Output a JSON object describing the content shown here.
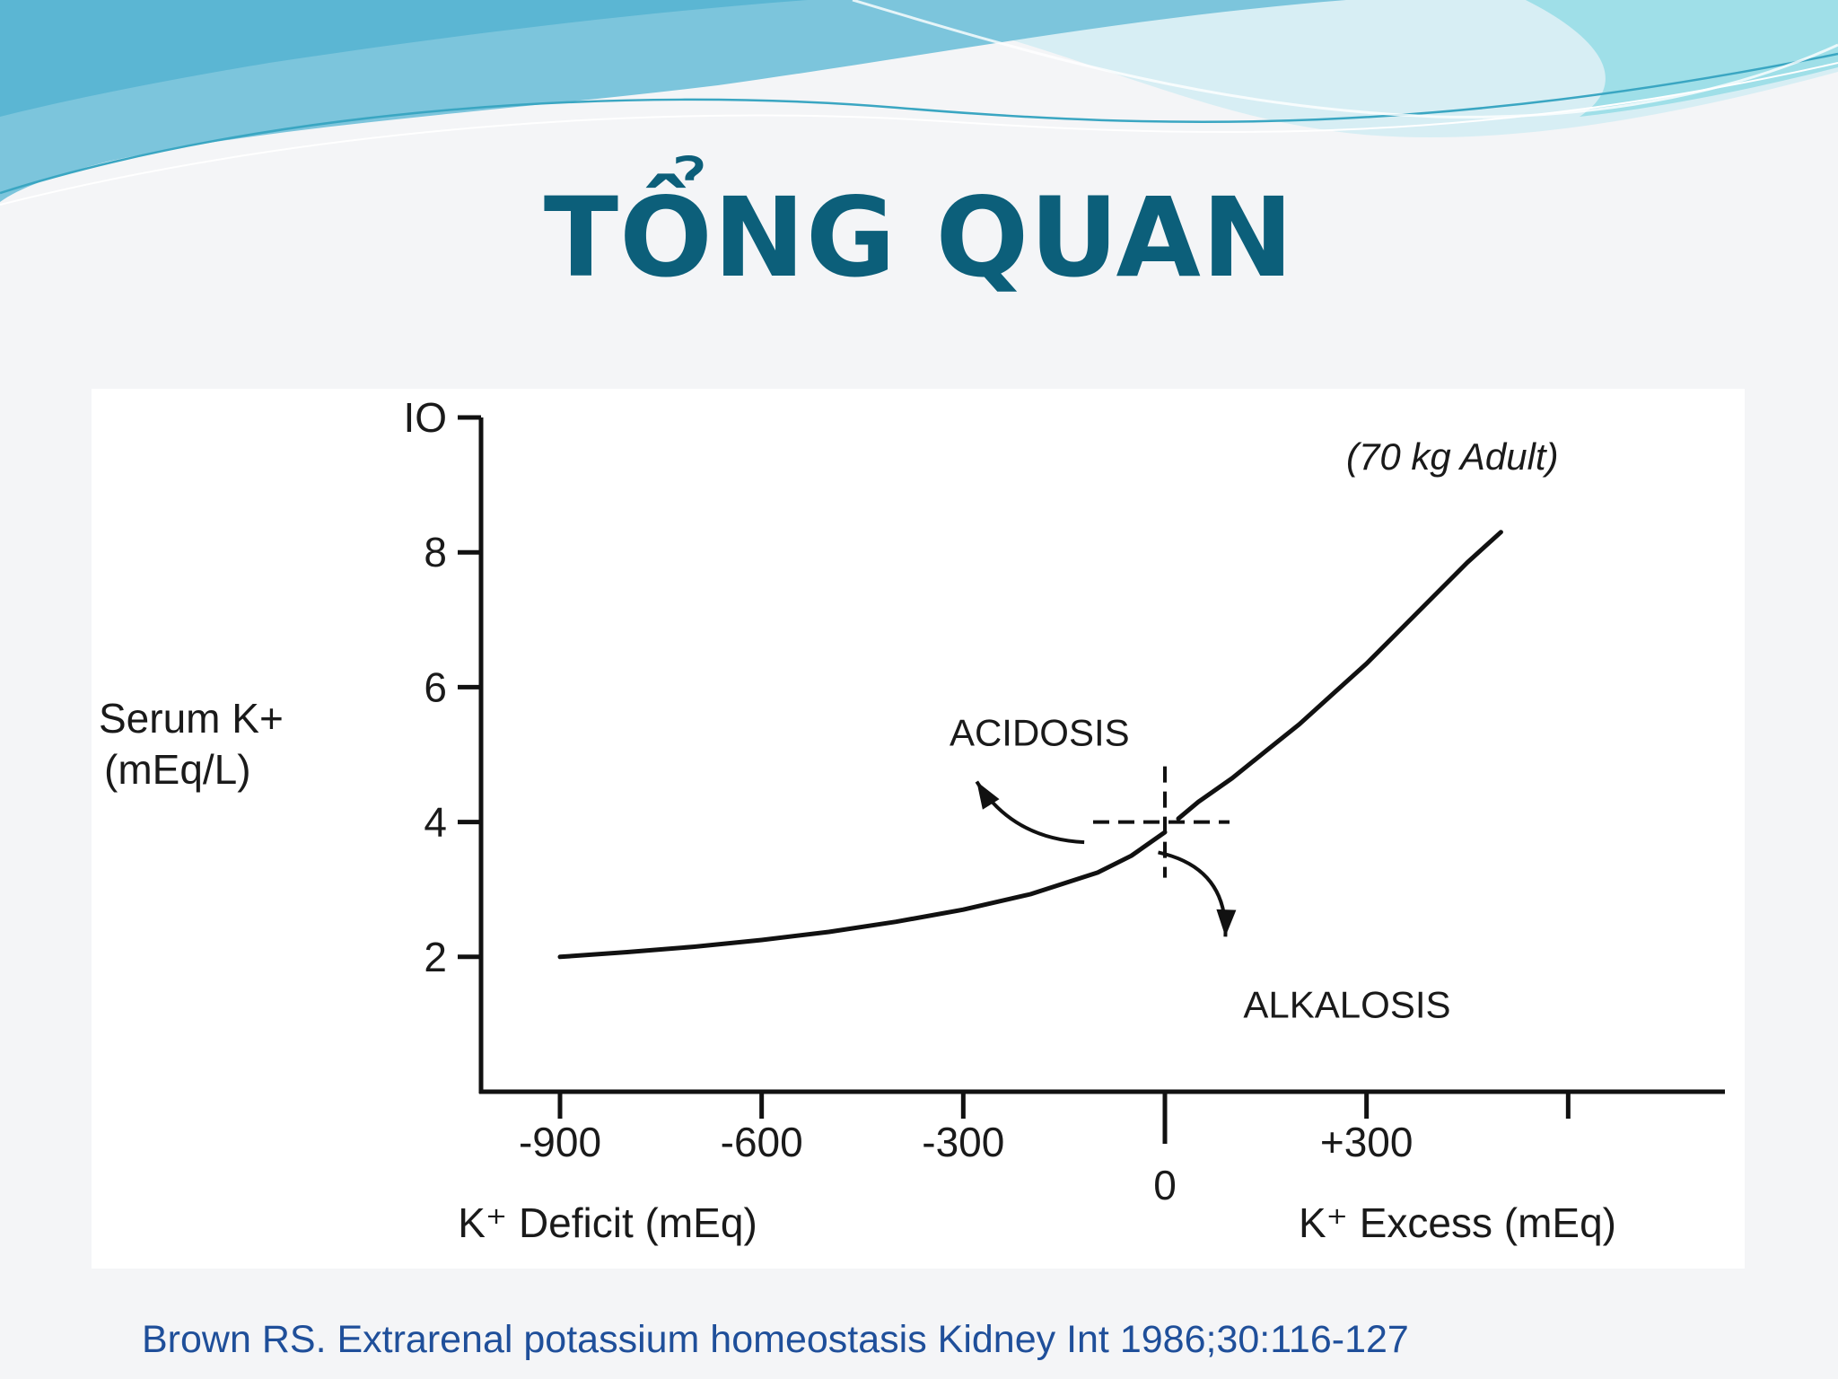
{
  "slide": {
    "title": "TỔNG QUAN",
    "citation": "Brown RS. Extrarenal potassium homeostasis Kidney Int 1986;30:116-127",
    "colors": {
      "title": "#0c5f7a",
      "citation": "#1f4f9a",
      "wave": "#6cc9da"
    }
  },
  "chart_data": {
    "type": "line",
    "ylabel_lines": [
      "Serum K+",
      "(mEq/L)"
    ],
    "xlabel_left": "K⁺ Deficit (mEq)",
    "xlabel_right": "K⁺ Excess (mEq)",
    "annotation": "(70 kg Adult)",
    "xlim": [
      -1000,
      1400
    ],
    "ylim": [
      0,
      10
    ],
    "x_ticks": [
      {
        "value": -900,
        "label": "-900"
      },
      {
        "value": -600,
        "label": "-600"
      },
      {
        "value": -300,
        "label": "-300"
      },
      {
        "value": 0,
        "label": "0"
      },
      {
        "value": 300,
        "label": "+300"
      },
      {
        "value": 600,
        "label": ""
      }
    ],
    "y_ticks": [
      {
        "value": 2,
        "label": "2"
      },
      {
        "value": 4,
        "label": "4"
      },
      {
        "value": 6,
        "label": "6"
      },
      {
        "value": 8,
        "label": "8"
      },
      {
        "value": 10,
        "label": "IO"
      }
    ],
    "series": [
      {
        "x": [
          -900,
          -800,
          -700,
          -600,
          -500,
          -400,
          -300,
          -200,
          -100,
          -50,
          0
        ],
        "y": [
          2.0,
          2.07,
          2.15,
          2.25,
          2.37,
          2.52,
          2.7,
          2.93,
          3.25,
          3.5,
          3.85
        ]
      },
      {
        "x": [
          20,
          50,
          100,
          150,
          200,
          250,
          300,
          350,
          400,
          450,
          500
        ],
        "y": [
          4.05,
          4.3,
          4.65,
          5.05,
          5.45,
          5.9,
          6.35,
          6.85,
          7.35,
          7.85,
          8.3
        ]
      }
    ],
    "reference": {
      "x": 0,
      "y": 4
    },
    "arrows": [
      {
        "label": "ACIDOSIS",
        "from": [
          -120,
          3.7
        ],
        "to": [
          -280,
          4.6
        ]
      },
      {
        "label": "ALKALOSIS",
        "from": [
          -10,
          3.55
        ],
        "to": [
          90,
          2.3
        ]
      }
    ]
  }
}
